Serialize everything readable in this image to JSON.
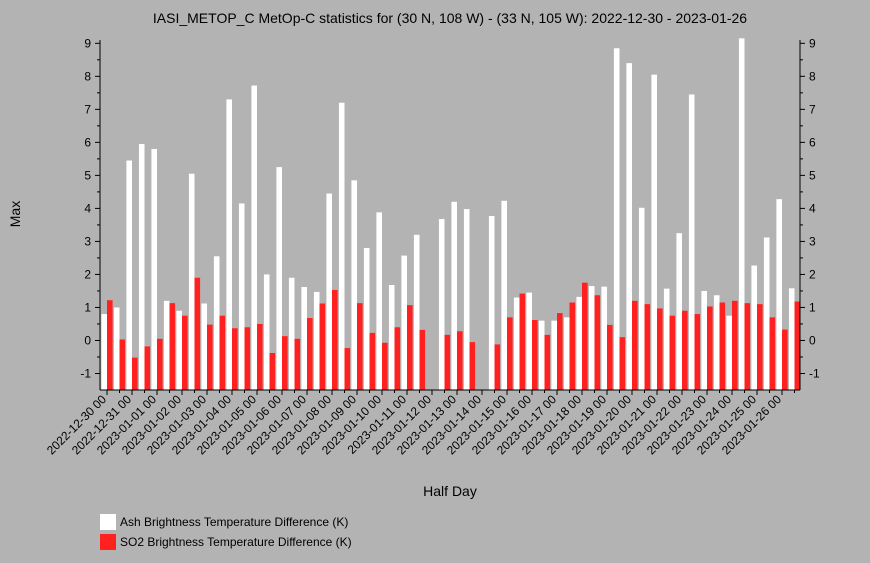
{
  "chart_data": {
    "type": "bar",
    "title": "IASI_METOP_C MetOp-C statistics for (30 N, 108 W) - (33 N, 105 W): 2022-12-30 - 2023-01-26",
    "xlabel": "Half Day",
    "ylabel": "Max",
    "ylim": [
      -1.5,
      9.1
    ],
    "yticks": [
      -1,
      0,
      1,
      2,
      3,
      4,
      5,
      6,
      7,
      8,
      9
    ],
    "grid": false,
    "legend_position": "bottom-left",
    "x_tick_labels": [
      "2022-12-30 00",
      "2022-12-31 00",
      "2023-01-01 00",
      "2023-01-02 00",
      "2023-01-03 00",
      "2023-01-04 00",
      "2023-01-05 00",
      "2023-01-06 00",
      "2023-01-07 00",
      "2023-01-08 00",
      "2023-01-09 00",
      "2023-01-10 00",
      "2023-01-11 00",
      "2023-01-12 00",
      "2023-01-13 00",
      "2023-01-14 00",
      "2023-01-15 00",
      "2023-01-16 00",
      "2023-01-17 00",
      "2023-01-18 00",
      "2023-01-19 00",
      "2023-01-20 00",
      "2023-01-21 00",
      "2023-01-22 00",
      "2023-01-23 00",
      "2023-01-24 00",
      "2023-01-25 00",
      "2023-01-26 00"
    ],
    "categories": [
      "2022-12-30 00",
      "2022-12-30 12",
      "2022-12-31 00",
      "2022-12-31 12",
      "2023-01-01 00",
      "2023-01-01 12",
      "2023-01-02 00",
      "2023-01-02 12",
      "2023-01-03 00",
      "2023-01-03 12",
      "2023-01-04 00",
      "2023-01-04 12",
      "2023-01-05 00",
      "2023-01-05 12",
      "2023-01-06 00",
      "2023-01-06 12",
      "2023-01-07 00",
      "2023-01-07 12",
      "2023-01-08 00",
      "2023-01-08 12",
      "2023-01-09 00",
      "2023-01-09 12",
      "2023-01-10 00",
      "2023-01-10 12",
      "2023-01-11 00",
      "2023-01-11 12",
      "2023-01-12 00",
      "2023-01-12 12",
      "2023-01-13 00",
      "2023-01-13 12",
      "2023-01-14 00",
      "2023-01-14 12",
      "2023-01-15 00",
      "2023-01-15 12",
      "2023-01-16 00",
      "2023-01-16 12",
      "2023-01-17 00",
      "2023-01-17 12",
      "2023-01-18 00",
      "2023-01-18 12",
      "2023-01-19 00",
      "2023-01-19 12",
      "2023-01-20 00",
      "2023-01-20 12",
      "2023-01-21 00",
      "2023-01-21 12",
      "2023-01-22 00",
      "2023-01-22 12",
      "2023-01-23 00",
      "2023-01-23 12",
      "2023-01-24 00",
      "2023-01-24 12",
      "2023-01-25 00",
      "2023-01-25 12",
      "2023-01-26 00",
      "2023-01-26 12"
    ],
    "series": [
      {
        "name": "Ash Brightness Temperature Difference (K)",
        "color": "#ffffff",
        "values": [
          0.8,
          1.0,
          5.45,
          5.95,
          5.8,
          1.2,
          0.9,
          5.05,
          1.12,
          2.55,
          7.3,
          4.15,
          7.72,
          2.0,
          5.25,
          1.9,
          1.62,
          1.47,
          4.45,
          7.2,
          4.85,
          2.8,
          3.88,
          1.68,
          2.57,
          3.2,
          null,
          3.68,
          4.2,
          3.98,
          null,
          3.77,
          4.23,
          1.3,
          1.45,
          0.6,
          0.6,
          0.7,
          1.32,
          1.65,
          1.63,
          8.85,
          8.4,
          4.02,
          8.05,
          1.57,
          3.25,
          7.45,
          1.5,
          1.37,
          0.75,
          9.15,
          2.27,
          3.12,
          4.28,
          1.58
        ]
      },
      {
        "name": "SO2 Brightness Temperature Difference (K)",
        "color": "#ff2020",
        "values": [
          1.22,
          0.03,
          -0.52,
          -0.18,
          0.05,
          1.13,
          0.75,
          1.9,
          0.48,
          0.75,
          0.37,
          0.4,
          0.5,
          -0.38,
          0.13,
          0.05,
          0.68,
          1.12,
          1.53,
          -0.23,
          1.13,
          0.23,
          -0.07,
          0.4,
          1.07,
          0.32,
          null,
          0.17,
          0.28,
          -0.05,
          null,
          -0.12,
          0.7,
          1.42,
          0.62,
          0.17,
          0.83,
          1.15,
          1.75,
          1.37,
          0.47,
          0.1,
          1.2,
          1.1,
          0.97,
          0.75,
          0.9,
          0.8,
          1.03,
          1.15,
          1.2,
          1.13,
          1.1,
          0.7,
          0.33,
          1.18
        ]
      }
    ]
  },
  "legend": {
    "ash_label": "Ash Brightness Temperature Difference (K)",
    "so2_label": "SO2 Brightness Temperature Difference (K)"
  }
}
